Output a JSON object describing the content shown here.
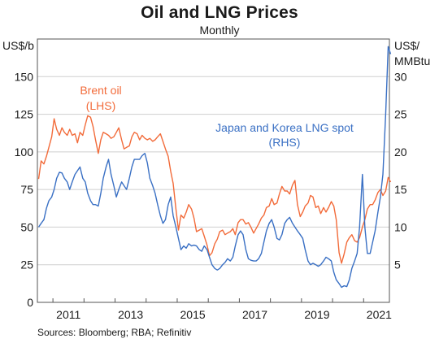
{
  "chart_data": {
    "type": "line",
    "title": "Oil and LNG Prices",
    "subtitle": "Monthly",
    "y_left_unit": "US$/b",
    "y_right_unit_lines": [
      "US$/",
      "MMBtu"
    ],
    "ylim_left": [
      0,
      175
    ],
    "ylim_right": [
      0,
      35
    ],
    "xlim": [
      2010.5,
      2021.83
    ],
    "y_left_ticks": [
      0,
      25,
      50,
      75,
      100,
      125,
      150
    ],
    "y_right_ticks": [
      5,
      10,
      15,
      20,
      25,
      30
    ],
    "x_tick_labels": [
      "2011",
      "2013",
      "2015",
      "2017",
      "2019",
      "2021"
    ],
    "x_tick_values": [
      2011,
      2013,
      2015,
      2017,
      2019,
      2021
    ],
    "source": "Sources: Bloomberg; RBA; Refinitiv",
    "colors": {
      "brent": "#f26b3a",
      "lng": "#3a70c4",
      "axis": "#555555",
      "grid": "#cfcfcf"
    },
    "series": [
      {
        "key": "brent",
        "name": "Brent oil",
        "annotation_lines": [
          "Brent oil",
          "(LHS)"
        ],
        "axis": "left",
        "points": [
          [
            2010.54,
            82
          ],
          [
            2010.62,
            94
          ],
          [
            2010.71,
            92
          ],
          [
            2010.79,
            97
          ],
          [
            2010.87,
            103
          ],
          [
            2010.96,
            110
          ],
          [
            2011.04,
            122
          ],
          [
            2011.12,
            115
          ],
          [
            2011.21,
            111
          ],
          [
            2011.29,
            116
          ],
          [
            2011.37,
            113
          ],
          [
            2011.46,
            111
          ],
          [
            2011.54,
            115
          ],
          [
            2011.62,
            111
          ],
          [
            2011.71,
            112
          ],
          [
            2011.79,
            106
          ],
          [
            2011.87,
            113
          ],
          [
            2011.96,
            111
          ],
          [
            2012.04,
            118
          ],
          [
            2012.12,
            124
          ],
          [
            2012.21,
            123
          ],
          [
            2012.29,
            117
          ],
          [
            2012.37,
            108
          ],
          [
            2012.46,
            99
          ],
          [
            2012.54,
            108
          ],
          [
            2012.62,
            113
          ],
          [
            2012.71,
            112
          ],
          [
            2012.79,
            111
          ],
          [
            2012.87,
            109
          ],
          [
            2012.96,
            110
          ],
          [
            2013.04,
            113
          ],
          [
            2013.12,
            116
          ],
          [
            2013.21,
            108
          ],
          [
            2013.29,
            102
          ],
          [
            2013.37,
            103
          ],
          [
            2013.46,
            104
          ],
          [
            2013.54,
            110
          ],
          [
            2013.62,
            113
          ],
          [
            2013.71,
            112
          ],
          [
            2013.79,
            108
          ],
          [
            2013.87,
            111
          ],
          [
            2013.96,
            109
          ],
          [
            2014.04,
            108
          ],
          [
            2014.12,
            109
          ],
          [
            2014.21,
            107
          ],
          [
            2014.29,
            108
          ],
          [
            2014.37,
            110
          ],
          [
            2014.46,
            112
          ],
          [
            2014.54,
            107
          ],
          [
            2014.62,
            102
          ],
          [
            2014.71,
            97
          ],
          [
            2014.79,
            87
          ],
          [
            2014.87,
            79
          ],
          [
            2014.96,
            62
          ],
          [
            2015.04,
            48
          ],
          [
            2015.12,
            58
          ],
          [
            2015.21,
            56
          ],
          [
            2015.29,
            60
          ],
          [
            2015.37,
            65
          ],
          [
            2015.46,
            62
          ],
          [
            2015.54,
            56
          ],
          [
            2015.62,
            47
          ],
          [
            2015.71,
            48
          ],
          [
            2015.79,
            49
          ],
          [
            2015.87,
            44
          ],
          [
            2015.96,
            38
          ],
          [
            2016.04,
            31
          ],
          [
            2016.12,
            33
          ],
          [
            2016.21,
            39
          ],
          [
            2016.29,
            42
          ],
          [
            2016.37,
            47
          ],
          [
            2016.46,
            48
          ],
          [
            2016.54,
            45
          ],
          [
            2016.62,
            46
          ],
          [
            2016.71,
            47
          ],
          [
            2016.79,
            49
          ],
          [
            2016.87,
            45
          ],
          [
            2016.96,
            53
          ],
          [
            2017.04,
            55
          ],
          [
            2017.12,
            55
          ],
          [
            2017.21,
            52
          ],
          [
            2017.29,
            53
          ],
          [
            2017.37,
            50
          ],
          [
            2017.46,
            46
          ],
          [
            2017.54,
            49
          ],
          [
            2017.62,
            52
          ],
          [
            2017.71,
            56
          ],
          [
            2017.79,
            58
          ],
          [
            2017.87,
            63
          ],
          [
            2017.96,
            64
          ],
          [
            2018.04,
            69
          ],
          [
            2018.12,
            65
          ],
          [
            2018.21,
            66
          ],
          [
            2018.29,
            72
          ],
          [
            2018.37,
            77
          ],
          [
            2018.46,
            74
          ],
          [
            2018.54,
            74
          ],
          [
            2018.62,
            72
          ],
          [
            2018.71,
            78
          ],
          [
            2018.79,
            81
          ],
          [
            2018.87,
            65
          ],
          [
            2018.96,
            57
          ],
          [
            2019.04,
            60
          ],
          [
            2019.12,
            64
          ],
          [
            2019.21,
            66
          ],
          [
            2019.29,
            71
          ],
          [
            2019.37,
            70
          ],
          [
            2019.46,
            63
          ],
          [
            2019.54,
            64
          ],
          [
            2019.62,
            59
          ],
          [
            2019.71,
            63
          ],
          [
            2019.79,
            60
          ],
          [
            2019.87,
            63
          ],
          [
            2019.96,
            67
          ],
          [
            2020.04,
            64
          ],
          [
            2020.12,
            55
          ],
          [
            2020.21,
            33
          ],
          [
            2020.29,
            26
          ],
          [
            2020.37,
            32
          ],
          [
            2020.46,
            40
          ],
          [
            2020.54,
            43
          ],
          [
            2020.62,
            45
          ],
          [
            2020.71,
            41
          ],
          [
            2020.79,
            40
          ],
          [
            2020.87,
            43
          ],
          [
            2020.96,
            50
          ],
          [
            2021.04,
            55
          ],
          [
            2021.12,
            62
          ],
          [
            2021.21,
            65
          ],
          [
            2021.29,
            65
          ],
          [
            2021.37,
            68
          ],
          [
            2021.46,
            73
          ],
          [
            2021.54,
            75
          ],
          [
            2021.62,
            71
          ],
          [
            2021.71,
            74
          ],
          [
            2021.79,
            83
          ],
          [
            2021.87,
            80
          ]
        ]
      },
      {
        "key": "lng",
        "name": "Japan and Korea LNG spot",
        "annotation_lines": [
          "Japan and Korea LNG spot",
          "(RHS)"
        ],
        "axis": "right",
        "points": [
          [
            2010.54,
            10.0
          ],
          [
            2010.62,
            10.5
          ],
          [
            2010.71,
            11.0
          ],
          [
            2010.79,
            12.5
          ],
          [
            2010.87,
            13.5
          ],
          [
            2010.96,
            14.0
          ],
          [
            2011.04,
            15.0
          ],
          [
            2011.12,
            16.5
          ],
          [
            2011.21,
            17.3
          ],
          [
            2011.29,
            17.2
          ],
          [
            2011.37,
            16.5
          ],
          [
            2011.46,
            16.0
          ],
          [
            2011.54,
            15.0
          ],
          [
            2011.62,
            16.0
          ],
          [
            2011.71,
            17.0
          ],
          [
            2011.79,
            17.5
          ],
          [
            2011.87,
            18.0
          ],
          [
            2011.96,
            16.5
          ],
          [
            2012.04,
            16.0
          ],
          [
            2012.12,
            14.5
          ],
          [
            2012.21,
            13.5
          ],
          [
            2012.29,
            13.0
          ],
          [
            2012.37,
            13.0
          ],
          [
            2012.46,
            12.8
          ],
          [
            2012.54,
            14.5
          ],
          [
            2012.62,
            16.5
          ],
          [
            2012.71,
            18.0
          ],
          [
            2012.79,
            19.0
          ],
          [
            2012.87,
            17.0
          ],
          [
            2012.96,
            15.5
          ],
          [
            2013.04,
            14.0
          ],
          [
            2013.12,
            15.0
          ],
          [
            2013.21,
            16.0
          ],
          [
            2013.29,
            15.5
          ],
          [
            2013.37,
            15.0
          ],
          [
            2013.46,
            16.5
          ],
          [
            2013.54,
            18.0
          ],
          [
            2013.62,
            19.0
          ],
          [
            2013.71,
            19.0
          ],
          [
            2013.79,
            19.0
          ],
          [
            2013.87,
            19.5
          ],
          [
            2013.96,
            19.8
          ],
          [
            2014.04,
            18.5
          ],
          [
            2014.12,
            16.5
          ],
          [
            2014.21,
            15.5
          ],
          [
            2014.29,
            14.5
          ],
          [
            2014.37,
            13.0
          ],
          [
            2014.46,
            11.5
          ],
          [
            2014.54,
            10.5
          ],
          [
            2014.62,
            11.0
          ],
          [
            2014.71,
            13.0
          ],
          [
            2014.79,
            14.0
          ],
          [
            2014.87,
            11.5
          ],
          [
            2014.96,
            10.0
          ],
          [
            2015.04,
            8.5
          ],
          [
            2015.12,
            7.0
          ],
          [
            2015.21,
            7.5
          ],
          [
            2015.29,
            7.2
          ],
          [
            2015.37,
            7.8
          ],
          [
            2015.46,
            7.5
          ],
          [
            2015.54,
            7.6
          ],
          [
            2015.62,
            7.5
          ],
          [
            2015.71,
            7.0
          ],
          [
            2015.79,
            6.8
          ],
          [
            2015.87,
            7.5
          ],
          [
            2015.96,
            7.0
          ],
          [
            2016.04,
            6.0
          ],
          [
            2016.12,
            5.0
          ],
          [
            2016.21,
            4.5
          ],
          [
            2016.29,
            4.3
          ],
          [
            2016.37,
            4.5
          ],
          [
            2016.46,
            5.0
          ],
          [
            2016.54,
            5.3
          ],
          [
            2016.62,
            5.8
          ],
          [
            2016.71,
            5.5
          ],
          [
            2016.79,
            6.0
          ],
          [
            2016.87,
            7.5
          ],
          [
            2016.96,
            9.0
          ],
          [
            2017.04,
            9.5
          ],
          [
            2017.12,
            9.0
          ],
          [
            2017.21,
            7.0
          ],
          [
            2017.29,
            5.8
          ],
          [
            2017.37,
            5.6
          ],
          [
            2017.46,
            5.5
          ],
          [
            2017.54,
            5.5
          ],
          [
            2017.62,
            5.8
          ],
          [
            2017.71,
            6.5
          ],
          [
            2017.79,
            8.0
          ],
          [
            2017.87,
            9.5
          ],
          [
            2017.96,
            10.5
          ],
          [
            2018.04,
            11.0
          ],
          [
            2018.12,
            10.0
          ],
          [
            2018.21,
            8.5
          ],
          [
            2018.29,
            8.3
          ],
          [
            2018.37,
            9.0
          ],
          [
            2018.46,
            10.5
          ],
          [
            2018.54,
            11.0
          ],
          [
            2018.62,
            11.3
          ],
          [
            2018.71,
            10.5
          ],
          [
            2018.79,
            10.0
          ],
          [
            2018.87,
            9.5
          ],
          [
            2018.96,
            9.0
          ],
          [
            2019.04,
            8.5
          ],
          [
            2019.12,
            7.0
          ],
          [
            2019.21,
            5.5
          ],
          [
            2019.29,
            5.0
          ],
          [
            2019.37,
            5.2
          ],
          [
            2019.46,
            5.0
          ],
          [
            2019.54,
            4.8
          ],
          [
            2019.62,
            5.0
          ],
          [
            2019.71,
            5.5
          ],
          [
            2019.79,
            6.0
          ],
          [
            2019.87,
            5.8
          ],
          [
            2019.96,
            5.5
          ],
          [
            2020.04,
            4.0
          ],
          [
            2020.12,
            3.0
          ],
          [
            2020.21,
            2.5
          ],
          [
            2020.29,
            2.0
          ],
          [
            2020.37,
            2.2
          ],
          [
            2020.46,
            2.1
          ],
          [
            2020.54,
            3.0
          ],
          [
            2020.62,
            4.5
          ],
          [
            2020.71,
            5.5
          ],
          [
            2020.79,
            6.5
          ],
          [
            2020.87,
            10.0
          ],
          [
            2020.96,
            17.0
          ],
          [
            2021.04,
            10.0
          ],
          [
            2021.12,
            6.5
          ],
          [
            2021.21,
            6.5
          ],
          [
            2021.29,
            8.0
          ],
          [
            2021.37,
            9.5
          ],
          [
            2021.46,
            12.0
          ],
          [
            2021.54,
            14.0
          ],
          [
            2021.62,
            17.0
          ],
          [
            2021.71,
            25.0
          ],
          [
            2021.79,
            34.0
          ],
          [
            2021.87,
            33.0
          ]
        ]
      }
    ]
  }
}
